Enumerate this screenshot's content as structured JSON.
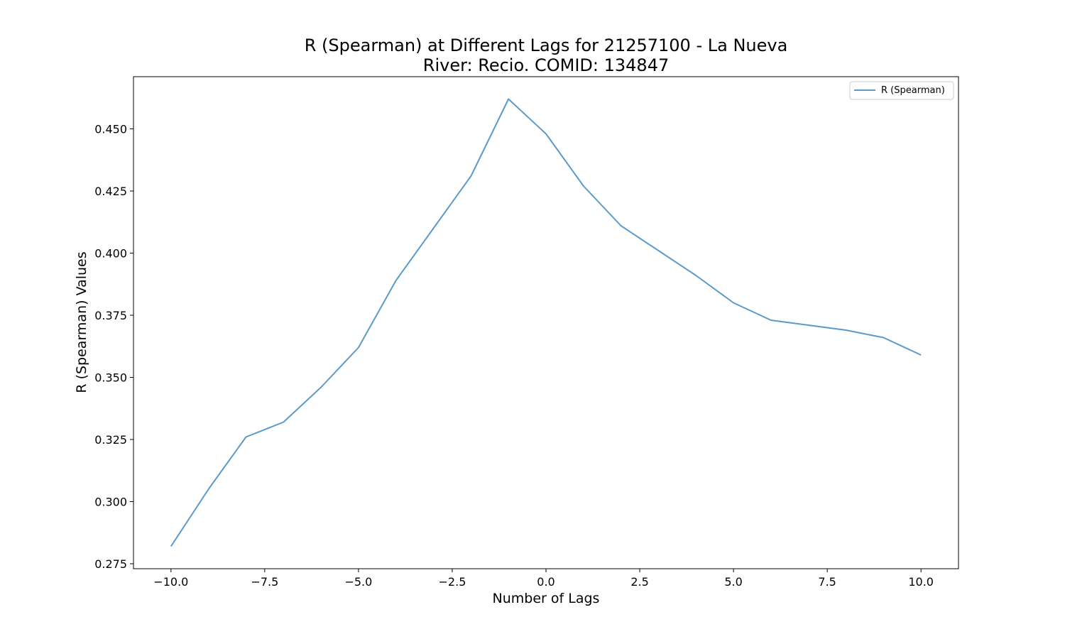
{
  "chart_data": {
    "type": "line",
    "title": [
      "R (Spearman) at Different Lags for 21257100 - La Nueva",
      "River: Recio. COMID: 134847"
    ],
    "xlabel": "Number of Lags",
    "ylabel": "R (Spearman) Values",
    "xlim": [
      -11,
      11
    ],
    "ylim": [
      0.273,
      0.471
    ],
    "xticks": [
      -10.0,
      -7.5,
      -5.0,
      -2.5,
      0.0,
      2.5,
      5.0,
      7.5,
      10.0
    ],
    "xtick_labels": [
      "−10.0",
      "−7.5",
      "−5.0",
      "−2.5",
      "0.0",
      "2.5",
      "5.0",
      "7.5",
      "10.0"
    ],
    "yticks": [
      0.275,
      0.3,
      0.325,
      0.35,
      0.375,
      0.4,
      0.425,
      0.45
    ],
    "ytick_labels": [
      "0.275",
      "0.300",
      "0.325",
      "0.350",
      "0.375",
      "0.400",
      "0.425",
      "0.450"
    ],
    "grid": false,
    "legend_position": "top-right",
    "x": [
      -10,
      -9,
      -8,
      -7,
      -6,
      -5,
      -4,
      -3,
      -2,
      -1,
      0,
      1,
      2,
      3,
      4,
      5,
      6,
      7,
      8,
      9,
      10
    ],
    "series": [
      {
        "name": "R (Spearman)",
        "color": "#5b9ac9",
        "values": [
          0.282,
          0.305,
          0.326,
          0.332,
          0.346,
          0.362,
          0.389,
          0.41,
          0.431,
          0.462,
          0.448,
          0.427,
          0.411,
          0.401,
          0.391,
          0.38,
          0.373,
          0.371,
          0.369,
          0.366,
          0.359
        ]
      }
    ]
  }
}
